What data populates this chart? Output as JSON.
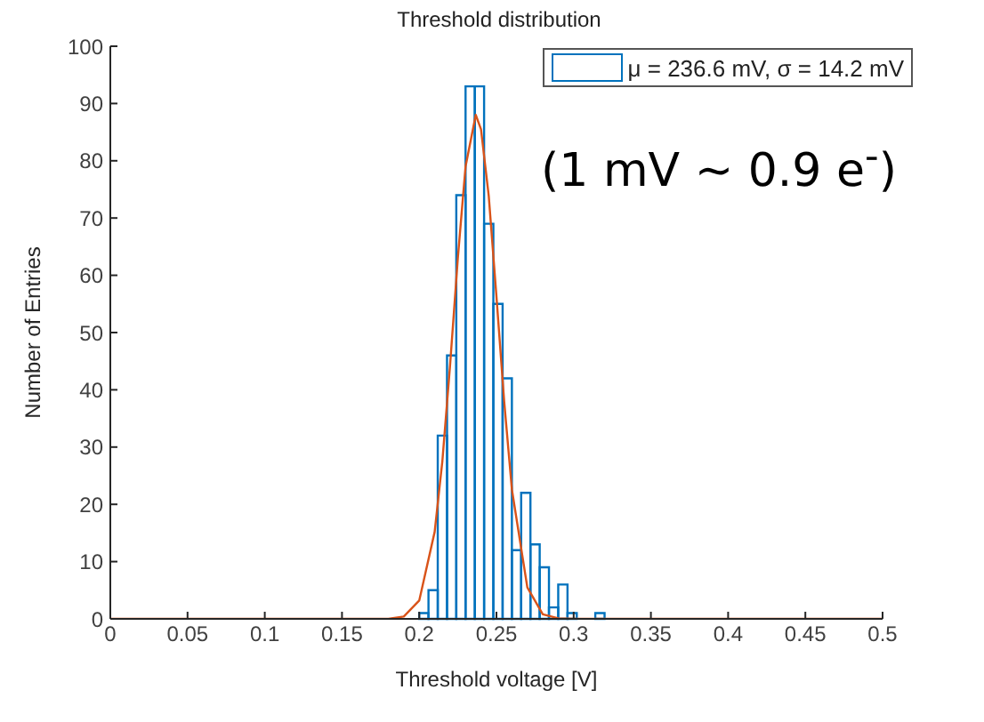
{
  "chart_data": {
    "type": "histogram",
    "title": "Threshold distribution",
    "xlabel": "Threshold voltage [V]",
    "ylabel": "Number of Entries",
    "bins": [
      0.2,
      0.206,
      0.212,
      0.218,
      0.224,
      0.23,
      0.236,
      0.242,
      0.248,
      0.254,
      0.26,
      0.266,
      0.272,
      0.278,
      0.284,
      0.29,
      0.296,
      0.302,
      0.308,
      0.314,
      0.32
    ],
    "series": [
      {
        "name": "μ = 236.6 mV, σ = 14.2 mV",
        "color": "#0072bd",
        "values": [
          1,
          5,
          32,
          46,
          74,
          93,
          93,
          69,
          55,
          42,
          12,
          22,
          13,
          9,
          2,
          6,
          1,
          0,
          0,
          1
        ]
      },
      {
        "type": "line",
        "color": "#d95319",
        "x": [
          0,
          0.17,
          0.18,
          0.19,
          0.2,
          0.21,
          0.215,
          0.22,
          0.225,
          0.23,
          0.2366,
          0.24,
          0.245,
          0.25,
          0.255,
          0.26,
          0.27,
          0.28,
          0.29,
          0.3,
          0.5
        ],
        "values": [
          0,
          0,
          0,
          0.4,
          3.2,
          15.2,
          27.6,
          44.4,
          63,
          79,
          88,
          85.5,
          73.9,
          56.3,
          38,
          22.6,
          5.5,
          0.8,
          0.1,
          0,
          0
        ]
      }
    ],
    "xlim": [
      0,
      0.5
    ],
    "xticks": [
      0,
      0.05,
      0.1,
      0.15,
      0.2,
      0.25,
      0.3,
      0.35,
      0.4,
      0.45,
      0.5
    ],
    "ylim": [
      0,
      100
    ],
    "yticks": [
      0,
      10,
      20,
      30,
      40,
      50,
      60,
      70,
      80,
      90,
      100
    ],
    "legend": "top right",
    "annotations": [
      "(1 mV ~ 0.9 e$^{-}$)"
    ]
  }
}
